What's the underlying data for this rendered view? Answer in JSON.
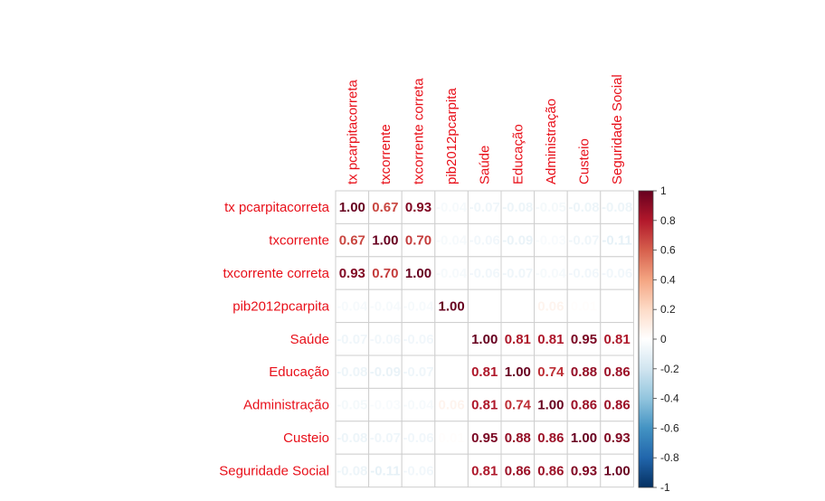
{
  "chart_data": {
    "type": "heatmap",
    "variables": [
      "tx pcarpitacorreta",
      "txcorrente",
      "txcorrente correta",
      "pib2012pcarpita",
      "Saúde",
      "Educação",
      "Administração",
      "Custeio",
      "Seguridade Social"
    ],
    "matrix": [
      [
        1.0,
        0.67,
        0.93,
        -0.04,
        -0.07,
        -0.08,
        -0.05,
        -0.08,
        -0.08
      ],
      [
        0.67,
        1.0,
        0.7,
        -0.04,
        -0.06,
        -0.09,
        -0.03,
        -0.07,
        -0.11
      ],
      [
        0.93,
        0.7,
        1.0,
        -0.04,
        -0.06,
        -0.07,
        -0.04,
        -0.06,
        -0.06
      ],
      [
        -0.04,
        -0.04,
        -0.04,
        1.0,
        0.0,
        0.0,
        0.06,
        0.01,
        0.0
      ],
      [
        -0.07,
        -0.06,
        -0.06,
        0.0,
        1.0,
        0.81,
        0.81,
        0.95,
        0.81
      ],
      [
        -0.08,
        -0.09,
        -0.07,
        0.0,
        0.81,
        1.0,
        0.74,
        0.88,
        0.86
      ],
      [
        -0.05,
        -0.03,
        -0.04,
        0.06,
        0.81,
        0.74,
        1.0,
        0.86,
        0.86
      ],
      [
        -0.08,
        -0.07,
        -0.06,
        0.01,
        0.95,
        0.88,
        0.86,
        1.0,
        0.93
      ],
      [
        -0.08,
        -0.11,
        -0.06,
        0.0,
        0.81,
        0.86,
        0.86,
        0.93,
        1.0
      ]
    ],
    "color_scale": {
      "range": [
        -1,
        1
      ],
      "ticks": [
        "1",
        "0.8",
        "0.6",
        "0.4",
        "0.2",
        "0",
        "-0.2",
        "-0.4",
        "-0.6",
        "-0.8",
        "-1"
      ],
      "colors": [
        "#67001f",
        "#b2182b",
        "#d6604d",
        "#f4a582",
        "#fddbc7",
        "#ffffff",
        "#d1e5f0",
        "#92c5de",
        "#4393c3",
        "#2166ac",
        "#053061"
      ]
    },
    "grid": true,
    "legend": "right"
  }
}
